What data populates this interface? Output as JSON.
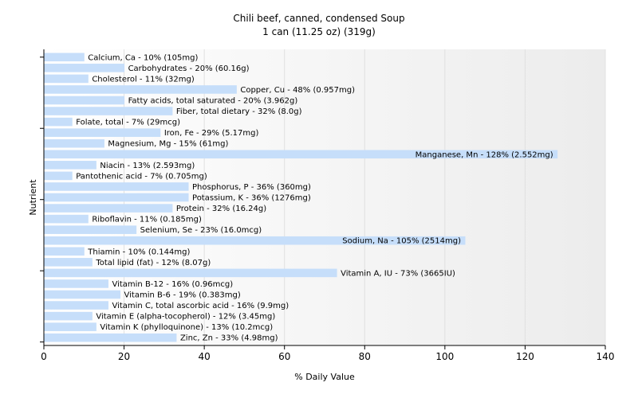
{
  "chart_data": {
    "type": "bar",
    "orientation": "horizontal",
    "title": "Chili beef, canned, condensed Soup",
    "subtitle": "1 can (11.25 oz) (319g)",
    "xlabel": "% Daily Value",
    "ylabel": "Nutrient",
    "xlim": [
      0,
      140
    ],
    "xticks": [
      "0",
      "20",
      "40",
      "60",
      "80",
      "100",
      "120",
      "140"
    ],
    "grid": true,
    "bar_color": "#c6defa",
    "categories": [
      "Calcium, Ca - 10% (105mg)",
      "Carbohydrates - 20% (60.16g)",
      "Cholesterol - 11% (32mg)",
      "Copper, Cu - 48% (0.957mg)",
      "Fatty acids, total saturated - 20% (3.962g)",
      "Fiber, total dietary - 32% (8.0g)",
      "Folate, total - 7% (29mcg)",
      "Iron, Fe - 29% (5.17mg)",
      "Magnesium, Mg - 15% (61mg)",
      "Manganese, Mn - 128% (2.552mg)",
      "Niacin - 13% (2.593mg)",
      "Pantothenic acid - 7% (0.705mg)",
      "Phosphorus, P - 36% (360mg)",
      "Potassium, K - 36% (1276mg)",
      "Protein - 32% (16.24g)",
      "Riboflavin - 11% (0.185mg)",
      "Selenium, Se - 23% (16.0mcg)",
      "Sodium, Na - 105% (2514mg)",
      "Thiamin - 10% (0.144mg)",
      "Total lipid (fat) - 12% (8.07g)",
      "Vitamin A, IU - 73% (3665IU)",
      "Vitamin B-12 - 16% (0.96mcg)",
      "Vitamin B-6 - 19% (0.383mg)",
      "Vitamin C, total ascorbic acid - 16% (9.9mg)",
      "Vitamin E (alpha-tocopherol) - 12% (3.45mg)",
      "Vitamin K (phylloquinone) - 13% (10.2mcg)",
      "Zinc, Zn - 33% (4.98mg)"
    ],
    "values": [
      10,
      20,
      11,
      48,
      20,
      32,
      7,
      29,
      15,
      128,
      13,
      7,
      36,
      36,
      32,
      11,
      23,
      105,
      10,
      12,
      73,
      16,
      19,
      16,
      12,
      13,
      33
    ]
  }
}
